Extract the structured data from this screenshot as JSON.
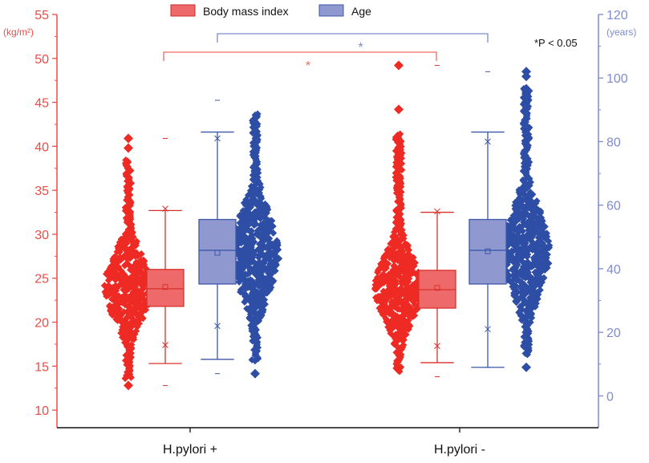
{
  "colors": {
    "bmi": "#ee2a24",
    "bmi_box": "#ee6a6a",
    "bmi_axis": "#ef4b46",
    "age": "#2e4ea6",
    "age_box": "#8f99d0",
    "age_axis": "#7f8ccc",
    "text": "#111111"
  },
  "significance_note": "*P < 0.05",
  "chart_data": {
    "type": "box",
    "categories": [
      "H.pylori +",
      "H.pylori -"
    ],
    "legend": {
      "position": "top",
      "entries": [
        "Body mass index",
        "Age"
      ]
    },
    "y_left": {
      "unit": "(kg/m²)",
      "range": [
        8,
        55
      ],
      "ticks": [
        "10",
        "15",
        "20",
        "25",
        "30",
        "35",
        "40",
        "45",
        "50",
        "55"
      ]
    },
    "y_right": {
      "unit": "(years)",
      "range": [
        -10,
        120
      ],
      "ticks": [
        "0",
        "20",
        "40",
        "60",
        "80",
        "100",
        "120"
      ]
    },
    "series": [
      {
        "name": "Body mass index",
        "axis": "left",
        "groups": [
          {
            "category": "H.pylori +",
            "whisker_low": 15.3,
            "q1": 21.8,
            "median": 23.8,
            "mean": 24.0,
            "q3": 26.0,
            "whisker_high": 32.7,
            "p1": 17.4,
            "p99": 32.9,
            "min": 12.8,
            "max": 40.9
          },
          {
            "category": "H.pylori -",
            "whisker_low": 15.4,
            "q1": 21.6,
            "median": 23.7,
            "mean": 23.9,
            "q3": 25.9,
            "whisker_high": 32.5,
            "p1": 17.3,
            "p99": 32.6,
            "min": 13.8,
            "max": 49.2
          }
        ]
      },
      {
        "name": "Age",
        "axis": "right",
        "groups": [
          {
            "category": "H.pylori +",
            "whisker_low": 11.5,
            "q1": 35.2,
            "median": 45.8,
            "mean": 45.0,
            "q3": 55.5,
            "whisker_high": 83,
            "p1": 22,
            "p99": 81,
            "min": 7,
            "max": 93
          },
          {
            "category": "H.pylori -",
            "whisker_low": 9,
            "q1": 35.2,
            "median": 45.8,
            "mean": 45.5,
            "q3": 55.5,
            "whisker_high": 83,
            "p1": 21,
            "p99": 80,
            "min": 9,
            "max": 102
          }
        ]
      }
    ],
    "significance": [
      {
        "series": "Body mass index",
        "label": "*"
      },
      {
        "series": "Age",
        "label": "*"
      }
    ]
  }
}
